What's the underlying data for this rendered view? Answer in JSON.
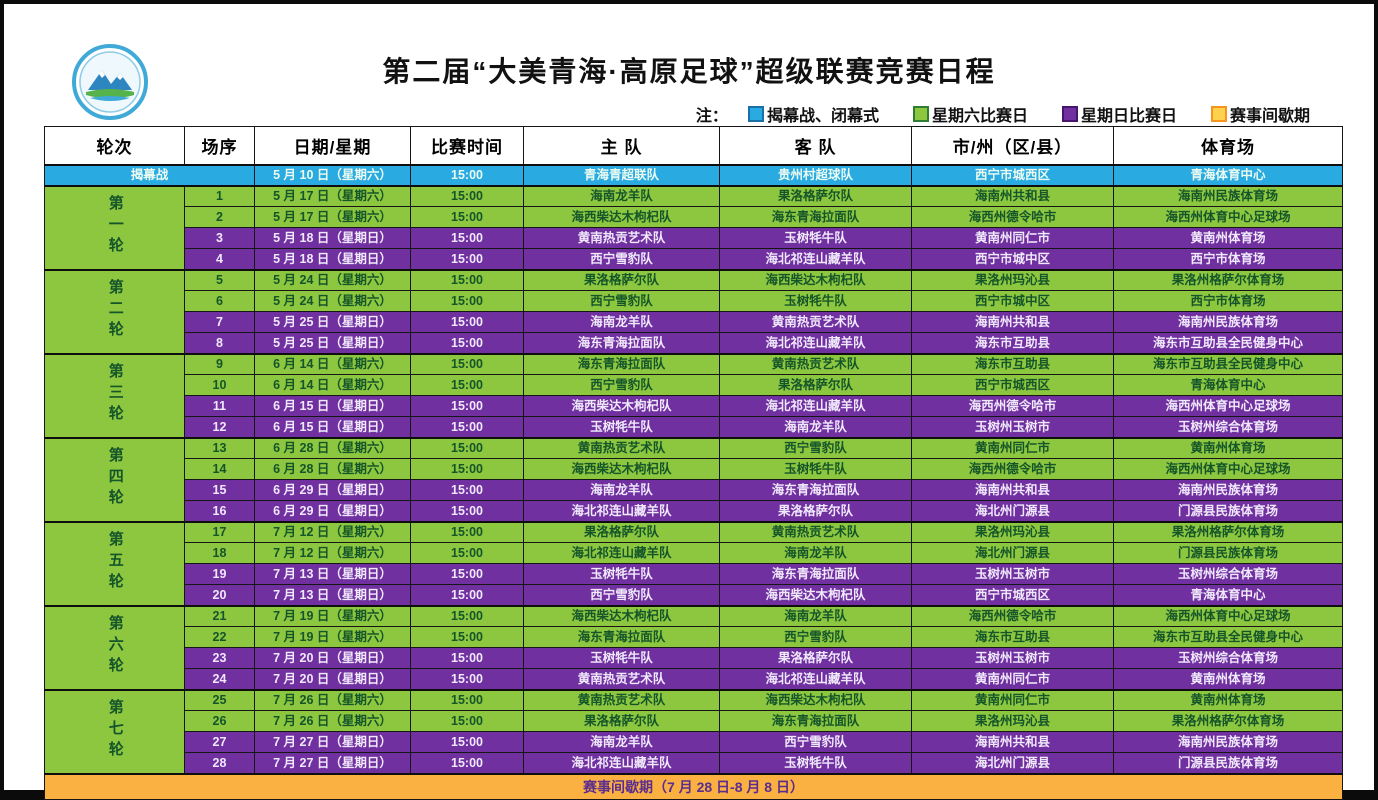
{
  "colors": {
    "opening": "#29abe2",
    "saturday": "#8dc63f",
    "sunday": "#7030a0",
    "break": "#fbb042",
    "logo_ring": "#3fa9d8"
  },
  "header": {
    "title": "第二届“大美青海·高原足球”超级联赛竞赛日程",
    "note_label": "注："
  },
  "legend": {
    "items": [
      {
        "label": "揭幕战、闭幕式",
        "color": "#29abe2",
        "border": "#1b6fa8"
      },
      {
        "label": "星期六比赛日",
        "color": "#8dc63f",
        "border": "#2f7d32"
      },
      {
        "label": "星期日比赛日",
        "color": "#7030a0",
        "border": "#47156e"
      },
      {
        "label": "赛事间歇期",
        "color": "#ffd24d",
        "border": "#f7941d"
      }
    ]
  },
  "table": {
    "columns": [
      "轮次",
      "场序",
      "日期/星期",
      "比赛时间",
      "主  队",
      "客  队",
      "市/州（区/县）",
      "体育场"
    ],
    "opening": {
      "label": "揭幕战",
      "date": "5 月 10 日（星期六）",
      "time": "15:00",
      "home": "青海青超联队",
      "away": "贵州村超球队",
      "location": "西宁市城西区",
      "venue": "青海体育中心"
    },
    "rounds": [
      {
        "label": "第一轮",
        "matches": [
          {
            "no": "1",
            "date": "5 月 17 日（星期六）",
            "time": "15:00",
            "home": "海南龙羊队",
            "away": "果洛格萨尔队",
            "location": "海南州共和县",
            "venue": "海南州民族体育场",
            "day": "sat"
          },
          {
            "no": "2",
            "date": "5 月 17 日（星期六）",
            "time": "15:00",
            "home": "海西柴达木枸杞队",
            "away": "海东青海拉面队",
            "location": "海西州德令哈市",
            "venue": "海西州体育中心足球场",
            "day": "sat"
          },
          {
            "no": "3",
            "date": "5 月 18 日（星期日）",
            "time": "15:00",
            "home": "黄南热贡艺术队",
            "away": "玉树牦牛队",
            "location": "黄南州同仁市",
            "venue": "黄南州体育场",
            "day": "sun"
          },
          {
            "no": "4",
            "date": "5 月 18 日（星期日）",
            "time": "15:00",
            "home": "西宁雪豹队",
            "away": "海北祁连山藏羊队",
            "location": "西宁市城中区",
            "venue": "西宁市体育场",
            "day": "sun"
          }
        ]
      },
      {
        "label": "第二轮",
        "matches": [
          {
            "no": "5",
            "date": "5 月 24 日（星期六）",
            "time": "15:00",
            "home": "果洛格萨尔队",
            "away": "海西柴达木枸杞队",
            "location": "果洛州玛沁县",
            "venue": "果洛州格萨尔体育场",
            "day": "sat"
          },
          {
            "no": "6",
            "date": "5 月 24 日（星期六）",
            "time": "15:00",
            "home": "西宁雪豹队",
            "away": "玉树牦牛队",
            "location": "西宁市城中区",
            "venue": "西宁市体育场",
            "day": "sat"
          },
          {
            "no": "7",
            "date": "5 月 25 日（星期日）",
            "time": "15:00",
            "home": "海南龙羊队",
            "away": "黄南热贡艺术队",
            "location": "海南州共和县",
            "venue": "海南州民族体育场",
            "day": "sun"
          },
          {
            "no": "8",
            "date": "5 月 25 日（星期日）",
            "time": "15:00",
            "home": "海东青海拉面队",
            "away": "海北祁连山藏羊队",
            "location": "海东市互助县",
            "venue": "海东市互助县全民健身中心",
            "day": "sun"
          }
        ]
      },
      {
        "label": "第三轮",
        "matches": [
          {
            "no": "9",
            "date": "6 月 14 日（星期六）",
            "time": "15:00",
            "home": "海东青海拉面队",
            "away": "黄南热贡艺术队",
            "location": "海东市互助县",
            "venue": "海东市互助县全民健身中心",
            "day": "sat"
          },
          {
            "no": "10",
            "date": "6 月 14 日（星期六）",
            "time": "15:00",
            "home": "西宁雪豹队",
            "away": "果洛格萨尔队",
            "location": "西宁市城西区",
            "venue": "青海体育中心",
            "day": "sat"
          },
          {
            "no": "11",
            "date": "6 月 15 日（星期日）",
            "time": "15:00",
            "home": "海西柴达木枸杞队",
            "away": "海北祁连山藏羊队",
            "location": "海西州德令哈市",
            "venue": "海西州体育中心足球场",
            "day": "sun"
          },
          {
            "no": "12",
            "date": "6 月 15 日（星期日）",
            "time": "15:00",
            "home": "玉树牦牛队",
            "away": "海南龙羊队",
            "location": "玉树州玉树市",
            "venue": "玉树州综合体育场",
            "day": "sun"
          }
        ]
      },
      {
        "label": "第四轮",
        "matches": [
          {
            "no": "13",
            "date": "6 月 28 日（星期六）",
            "time": "15:00",
            "home": "黄南热贡艺术队",
            "away": "西宁雪豹队",
            "location": "黄南州同仁市",
            "venue": "黄南州体育场",
            "day": "sat"
          },
          {
            "no": "14",
            "date": "6 月 28 日（星期六）",
            "time": "15:00",
            "home": "海西柴达木枸杞队",
            "away": "玉树牦牛队",
            "location": "海西州德令哈市",
            "venue": "海西州体育中心足球场",
            "day": "sat"
          },
          {
            "no": "15",
            "date": "6 月 29 日（星期日）",
            "time": "15:00",
            "home": "海南龙羊队",
            "away": "海东青海拉面队",
            "location": "海南州共和县",
            "venue": "海南州民族体育场",
            "day": "sun"
          },
          {
            "no": "16",
            "date": "6 月 29 日（星期日）",
            "time": "15:00",
            "home": "海北祁连山藏羊队",
            "away": "果洛格萨尔队",
            "location": "海北州门源县",
            "venue": "门源县民族体育场",
            "day": "sun"
          }
        ]
      },
      {
        "label": "第五轮",
        "matches": [
          {
            "no": "17",
            "date": "7 月 12 日（星期六）",
            "time": "15:00",
            "home": "果洛格萨尔队",
            "away": "黄南热贡艺术队",
            "location": "果洛州玛沁县",
            "venue": "果洛州格萨尔体育场",
            "day": "sat"
          },
          {
            "no": "18",
            "date": "7 月 12 日（星期六）",
            "time": "15:00",
            "home": "海北祁连山藏羊队",
            "away": "海南龙羊队",
            "location": "海北州门源县",
            "venue": "门源县民族体育场",
            "day": "sat"
          },
          {
            "no": "19",
            "date": "7 月 13 日（星期日）",
            "time": "15:00",
            "home": "玉树牦牛队",
            "away": "海东青海拉面队",
            "location": "玉树州玉树市",
            "venue": "玉树州综合体育场",
            "day": "sun"
          },
          {
            "no": "20",
            "date": "7 月 13 日（星期日）",
            "time": "15:00",
            "home": "西宁雪豹队",
            "away": "海西柴达木枸杞队",
            "location": "西宁市城西区",
            "venue": "青海体育中心",
            "day": "sun"
          }
        ]
      },
      {
        "label": "第六轮",
        "matches": [
          {
            "no": "21",
            "date": "7 月 19 日（星期六）",
            "time": "15:00",
            "home": "海西柴达木枸杞队",
            "away": "海南龙羊队",
            "location": "海西州德令哈市",
            "venue": "海西州体育中心足球场",
            "day": "sat"
          },
          {
            "no": "22",
            "date": "7 月 19 日（星期六）",
            "time": "15:00",
            "home": "海东青海拉面队",
            "away": "西宁雪豹队",
            "location": "海东市互助县",
            "venue": "海东市互助县全民健身中心",
            "day": "sat"
          },
          {
            "no": "23",
            "date": "7 月 20 日（星期日）",
            "time": "15:00",
            "home": "玉树牦牛队",
            "away": "果洛格萨尔队",
            "location": "玉树州玉树市",
            "venue": "玉树州综合体育场",
            "day": "sun"
          },
          {
            "no": "24",
            "date": "7 月 20 日（星期日）",
            "time": "15:00",
            "home": "黄南热贡艺术队",
            "away": "海北祁连山藏羊队",
            "location": "黄南州同仁市",
            "venue": "黄南州体育场",
            "day": "sun"
          }
        ]
      },
      {
        "label": "第七轮",
        "matches": [
          {
            "no": "25",
            "date": "7 月 26 日（星期六）",
            "time": "15:00",
            "home": "黄南热贡艺术队",
            "away": "海西柴达木枸杞队",
            "location": "黄南州同仁市",
            "venue": "黄南州体育场",
            "day": "sat"
          },
          {
            "no": "26",
            "date": "7 月 26 日（星期六）",
            "time": "15:00",
            "home": "果洛格萨尔队",
            "away": "海东青海拉面队",
            "location": "果洛州玛沁县",
            "venue": "果洛州格萨尔体育场",
            "day": "sat"
          },
          {
            "no": "27",
            "date": "7 月 27 日（星期日）",
            "time": "15:00",
            "home": "海南龙羊队",
            "away": "西宁雪豹队",
            "location": "海南州共和县",
            "venue": "海南州民族体育场",
            "day": "sun"
          },
          {
            "no": "28",
            "date": "7 月 27 日（星期日）",
            "time": "15:00",
            "home": "海北祁连山藏羊队",
            "away": "玉树牦牛队",
            "location": "海北州门源县",
            "venue": "门源县民族体育场",
            "day": "sun"
          }
        ]
      }
    ],
    "break_row": {
      "label": "赛事间歇期（7 月 28 日-8 月 8 日）"
    }
  }
}
